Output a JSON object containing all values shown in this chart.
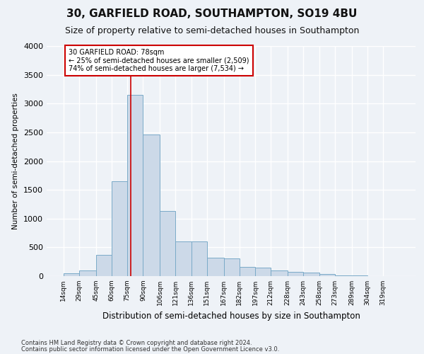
{
  "title": "30, GARFIELD ROAD, SOUTHAMPTON, SO19 4BU",
  "subtitle": "Size of property relative to semi-detached houses in Southampton",
  "xlabel": "Distribution of semi-detached houses by size in Southampton",
  "ylabel": "Number of semi-detached properties",
  "footnote1": "Contains HM Land Registry data © Crown copyright and database right 2024.",
  "footnote2": "Contains public sector information licensed under the Open Government Licence v3.0.",
  "bar_color": "#ccd9e8",
  "bar_edge_color": "#7aaac8",
  "annotation_box_color": "#ffffff",
  "annotation_box_edge": "#cc0000",
  "vline_color": "#cc0000",
  "property_sqm": 78,
  "annotation_title": "30 GARFIELD ROAD: 78sqm",
  "annotation_line1": "← 25% of semi-detached houses are smaller (2,509)",
  "annotation_line2": "74% of semi-detached houses are larger (7,534) →",
  "bin_labels": [
    "14sqm",
    "29sqm",
    "45sqm",
    "60sqm",
    "75sqm",
    "90sqm",
    "106sqm",
    "121sqm",
    "136sqm",
    "151sqm",
    "167sqm",
    "182sqm",
    "197sqm",
    "212sqm",
    "228sqm",
    "243sqm",
    "258sqm",
    "273sqm",
    "289sqm",
    "304sqm",
    "319sqm"
  ],
  "bin_edges": [
    14,
    29,
    45,
    60,
    75,
    90,
    106,
    121,
    136,
    151,
    167,
    182,
    197,
    212,
    228,
    243,
    258,
    273,
    289,
    304,
    319
  ],
  "bar_heights": [
    45,
    100,
    375,
    1650,
    3150,
    2460,
    1130,
    600,
    600,
    320,
    310,
    160,
    150,
    100,
    68,
    62,
    38,
    14,
    9,
    4,
    2
  ],
  "ylim": [
    0,
    4000
  ],
  "yticks": [
    0,
    500,
    1000,
    1500,
    2000,
    2500,
    3000,
    3500,
    4000
  ],
  "background_color": "#eef2f7",
  "grid_color": "#ffffff",
  "title_fontsize": 11,
  "subtitle_fontsize": 9
}
